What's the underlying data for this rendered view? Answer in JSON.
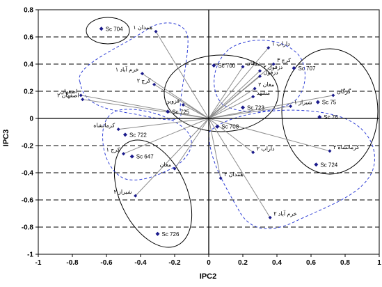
{
  "chart_data": {
    "type": "scatter",
    "title": "",
    "xlabel": "IPC2",
    "ylabel": "IPC3",
    "xlim": [
      -1,
      1
    ],
    "ylim": [
      -1,
      0.8
    ],
    "x_ticks": [
      "-1",
      "-0.8",
      "-0.6",
      "-0.4",
      "-0.2",
      "0",
      "0.2",
      "0.4",
      "0.6",
      "0.8",
      "1"
    ],
    "y_ticks": [
      "0.8",
      "0.6",
      "0.4",
      "0.2",
      "0",
      "-0.2",
      "-0.4",
      "-0.6",
      "-0.8",
      "-1"
    ],
    "horizontal_gridlines": "dashed",
    "colors": {
      "points": "#1a1a8c",
      "vectors": "#8c8c8c",
      "dashed_groups": "#2f3fd6",
      "solid_groups": "#000000"
    },
    "cultivars": [
      {
        "label": "Sc 704",
        "x": -0.63,
        "y": 0.66
      },
      {
        "label": "Sc 700",
        "x": 0.03,
        "y": 0.39
      },
      {
        "label": "Sc 707",
        "x": 0.5,
        "y": 0.37
      },
      {
        "label": "Sc 75",
        "x": 0.64,
        "y": 0.12
      },
      {
        "label": "Sc 76",
        "x": 0.65,
        "y": 0.01
      },
      {
        "label": "Sc 725",
        "x": -0.24,
        "y": 0.05
      },
      {
        "label": "Sc 722",
        "x": -0.49,
        "y": -0.12
      },
      {
        "label": "Sc 647",
        "x": -0.45,
        "y": -0.28
      },
      {
        "label": "Sc 726",
        "x": -0.3,
        "y": -0.85
      },
      {
        "label": "Sc 708",
        "x": 0.05,
        "y": -0.06
      },
      {
        "label": "Sc 724",
        "x": 0.63,
        "y": -0.34
      },
      {
        "label": "Sc 723",
        "x": 0.2,
        "y": 0.08
      }
    ],
    "environments": [
      {
        "label": "همدان ۱",
        "x": -0.31,
        "y": 0.64
      },
      {
        "label": "خرم آباد ۱",
        "x": -0.39,
        "y": 0.33
      },
      {
        "label": "کرج ۲",
        "x": -0.32,
        "y": 0.25
      },
      {
        "label": "اصفهان",
        "x": -0.75,
        "y": 0.17
      },
      {
        "label": "اصفهان ۲",
        "x": -0.74,
        "y": 0.14
      },
      {
        "label": "قزوین",
        "x": -0.15,
        "y": 0.1
      },
      {
        "label": "کرمانشاه",
        "x": -0.53,
        "y": -0.08
      },
      {
        "label": "کرج ۱",
        "x": -0.5,
        "y": -0.26
      },
      {
        "label": "مغان",
        "x": -0.2,
        "y": -0.37
      },
      {
        "label": "شیراز ۲",
        "x": -0.43,
        "y": -0.57
      },
      {
        "label": "داراب ۱",
        "x": 0.35,
        "y": 0.52
      },
      {
        "label": "کرج ۳",
        "x": 0.38,
        "y": 0.4
      },
      {
        "label": "زرقان",
        "x": 0.2,
        "y": 0.38
      },
      {
        "label": "دزفول ۲",
        "x": 0.3,
        "y": 0.35
      },
      {
        "label": "دزفول",
        "x": 0.3,
        "y": 0.31
      },
      {
        "label": "مغان ۲",
        "x": 0.27,
        "y": 0.22
      },
      {
        "label": "مشهد",
        "x": 0.26,
        "y": 0.16
      },
      {
        "label": "گرگان",
        "x": 0.73,
        "y": 0.17
      },
      {
        "label": "شیراز ۱",
        "x": 0.48,
        "y": 0.09
      },
      {
        "label": "داراب ۲",
        "x": 0.26,
        "y": -0.25
      },
      {
        "label": "همدان ۲",
        "x": 0.07,
        "y": -0.44
      },
      {
        "label": "کرمانشاه ۲",
        "x": 0.71,
        "y": -0.24
      },
      {
        "label": "خرم آباد ۲",
        "x": 0.36,
        "y": -0.73
      }
    ]
  }
}
